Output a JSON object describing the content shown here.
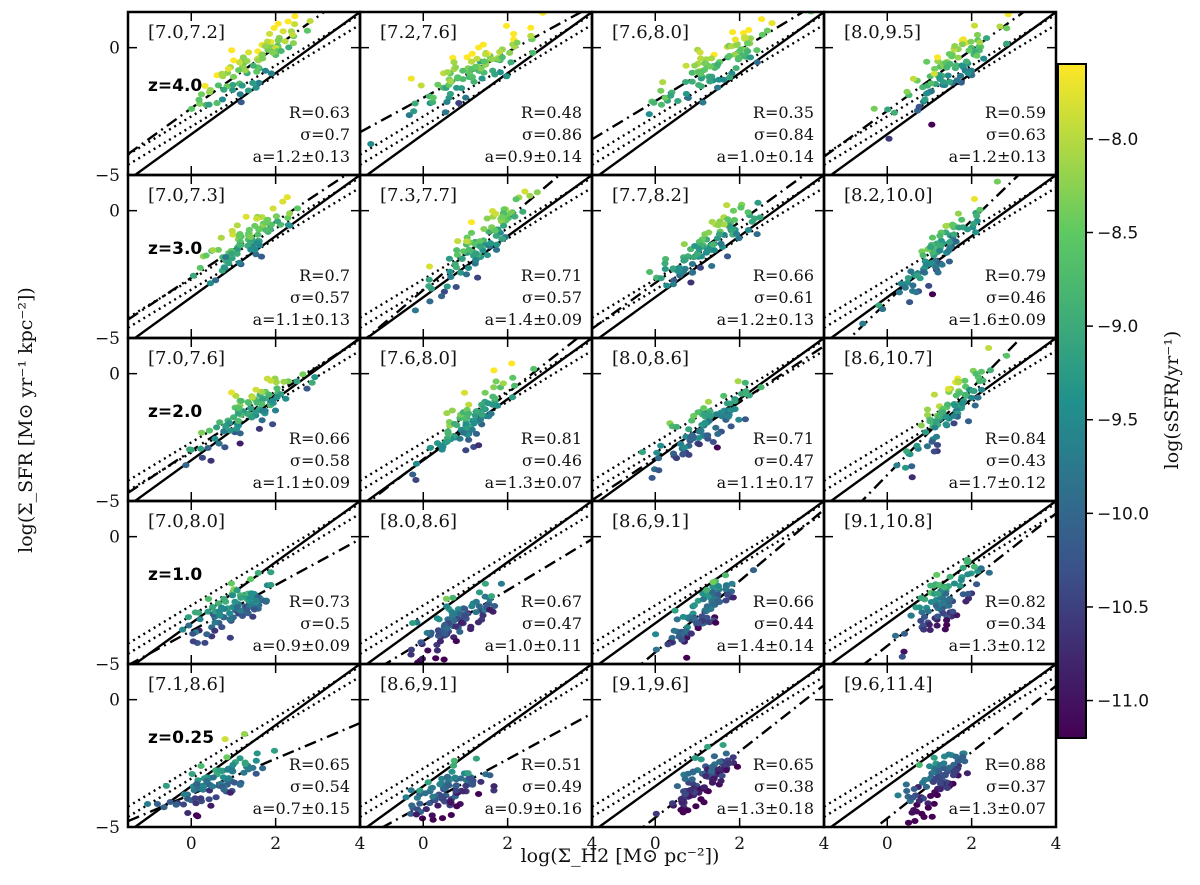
{
  "figure": {
    "xlabel": "log(Σ_H2 [M⊙ pc⁻²])",
    "ylabel": "log(Σ_SFR [M⊙ yr⁻¹ kpc⁻²])",
    "colorbar_label": "log(sSFR/yr⁻¹)",
    "colorbar_ticks": [
      "−8.0",
      "−8.5",
      "−9.0",
      "−9.5",
      "−10.0",
      "−10.5",
      "−11.0"
    ],
    "colorbar_tick_values": [
      -8.0,
      -8.5,
      -9.0,
      -9.5,
      -10.0,
      -10.5,
      -11.0
    ],
    "colorbar_range": [
      -11.2,
      -7.6
    ],
    "colormap": [
      "#440154",
      "#3b528b",
      "#21918c",
      "#5ec962",
      "#fde725"
    ],
    "x_tick_labels": [
      "0",
      "2",
      "4"
    ],
    "x_tick_values": [
      0,
      2,
      4
    ],
    "y_tick_labels": [
      "0",
      "−5"
    ],
    "y_tick_values": [
      0,
      -5
    ]
  },
  "chart_data": {
    "type": "scatter",
    "xlim": [
      -1.5,
      4.0
    ],
    "ylim": [
      -5.0,
      1.4
    ],
    "grid": false,
    "rows": [
      {
        "z_label": "z=4.0",
        "panels": [
          {
            "range": "[7.0,7.2]",
            "R": "R=0.63",
            "sigma": "σ=0.7",
            "a": "a=1.2±0.13",
            "slope": 1.2,
            "cx": 1.4,
            "cy": -0.7,
            "sx": 0.7,
            "c": -8.4
          },
          {
            "range": "[7.2,7.6]",
            "R": "R=0.48",
            "sigma": "σ=0.86",
            "a": "a=0.9±0.14",
            "slope": 0.9,
            "cx": 1.3,
            "cy": -0.8,
            "sx": 0.75,
            "c": -8.5
          },
          {
            "range": "[7.6,8.0]",
            "R": "R=0.35",
            "sigma": "σ=0.84",
            "a": "a=1.0±0.14",
            "slope": 1.0,
            "cx": 1.4,
            "cy": -0.7,
            "sx": 0.7,
            "c": -8.6
          },
          {
            "range": "[8.0,9.5]",
            "R": "R=0.59",
            "sigma": "σ=0.63",
            "a": "a=1.2±0.13",
            "slope": 1.2,
            "cx": 1.4,
            "cy": -0.8,
            "sx": 0.6,
            "c": -8.7
          }
        ]
      },
      {
        "z_label": "z=3.0",
        "panels": [
          {
            "range": "[7.0,7.3]",
            "R": "R=0.7",
            "sigma": "σ=0.57",
            "a": "a=1.1±0.13",
            "slope": 1.1,
            "cx": 1.3,
            "cy": -1.2,
            "sx": 0.6,
            "c": -8.8
          },
          {
            "range": "[7.3,7.7]",
            "R": "R=0.71",
            "sigma": "σ=0.57",
            "a": "a=1.4±0.09",
            "slope": 1.4,
            "cx": 1.3,
            "cy": -1.3,
            "sx": 0.6,
            "c": -8.9
          },
          {
            "range": "[7.7,8.2]",
            "R": "R=0.66",
            "sigma": "σ=0.61",
            "a": "a=1.2±0.13",
            "slope": 1.2,
            "cx": 1.2,
            "cy": -1.4,
            "sx": 0.6,
            "c": -9.1
          },
          {
            "range": "[8.2,10.0]",
            "R": "R=0.79",
            "sigma": "σ=0.46",
            "a": "a=1.6±0.09",
            "slope": 1.6,
            "cx": 1.3,
            "cy": -1.5,
            "sx": 0.5,
            "c": -9.3
          }
        ]
      },
      {
        "z_label": "z=2.0",
        "panels": [
          {
            "range": "[7.0,7.6]",
            "R": "R=0.66",
            "sigma": "σ=0.58",
            "a": "a=1.1±0.09",
            "slope": 1.1,
            "cx": 1.3,
            "cy": -1.6,
            "sx": 0.6,
            "c": -9.1
          },
          {
            "range": "[7.6,8.0]",
            "R": "R=0.81",
            "sigma": "σ=0.46",
            "a": "a=1.3±0.07",
            "slope": 1.3,
            "cx": 1.2,
            "cy": -1.8,
            "sx": 0.55,
            "c": -9.3
          },
          {
            "range": "[8.0,8.6]",
            "R": "R=0.71",
            "sigma": "σ=0.47",
            "a": "a=1.1±0.17",
            "slope": 1.1,
            "cx": 1.2,
            "cy": -2.0,
            "sx": 0.5,
            "c": -9.5
          },
          {
            "range": "[8.6,10.7]",
            "R": "R=0.84",
            "sigma": "σ=0.43",
            "a": "a=1.7±0.12",
            "slope": 1.7,
            "cx": 1.4,
            "cy": -1.6,
            "sx": 0.5,
            "c": -9.2
          }
        ]
      },
      {
        "z_label": "z=1.0",
        "panels": [
          {
            "range": "[7.0,8.0]",
            "R": "R=0.73",
            "sigma": "σ=0.5",
            "a": "a=0.9±0.09",
            "slope": 0.9,
            "cx": 1.0,
            "cy": -2.8,
            "sx": 0.6,
            "c": -9.6
          },
          {
            "range": "[8.0,8.6]",
            "R": "R=0.67",
            "sigma": "σ=0.47",
            "a": "a=1.0±0.11",
            "slope": 1.0,
            "cx": 0.8,
            "cy": -3.3,
            "sx": 0.5,
            "c": -10.1
          },
          {
            "range": "[8.6,9.1]",
            "R": "R=0.66",
            "sigma": "σ=0.44",
            "a": "a=1.4±0.14",
            "slope": 1.4,
            "cx": 1.1,
            "cy": -3.0,
            "sx": 0.45,
            "c": -10.0
          },
          {
            "range": "[9.1,10.8]",
            "R": "R=0.82",
            "sigma": "σ=0.34",
            "a": "a=1.3±0.12",
            "slope": 1.3,
            "cx": 1.3,
            "cy": -2.6,
            "sx": 0.45,
            "c": -9.9
          }
        ]
      },
      {
        "z_label": "z=0.25",
        "panels": [
          {
            "range": "[7.1,8.6]",
            "R": "R=0.65",
            "sigma": "σ=0.54",
            "a": "a=0.7±0.15",
            "slope": 0.7,
            "cx": 0.6,
            "cy": -3.3,
            "sx": 0.55,
            "c": -9.9
          },
          {
            "range": "[8.6,9.1]",
            "R": "R=0.51",
            "sigma": "σ=0.49",
            "a": "a=0.9±0.16",
            "slope": 0.9,
            "cx": 0.6,
            "cy": -3.6,
            "sx": 0.45,
            "c": -10.2
          },
          {
            "range": "[9.1,9.6]",
            "R": "R=0.65",
            "sigma": "σ=0.38",
            "a": "a=1.3±0.18",
            "slope": 1.3,
            "cx": 1.1,
            "cy": -3.2,
            "sx": 0.35,
            "c": -10.5
          },
          {
            "range": "[9.6,11.4]",
            "R": "R=0.88",
            "sigma": "σ=0.37",
            "a": "a=1.3±0.07",
            "slope": 1.3,
            "cx": 1.2,
            "cy": -3.1,
            "sx": 0.4,
            "c": -10.3
          }
        ]
      }
    ]
  }
}
